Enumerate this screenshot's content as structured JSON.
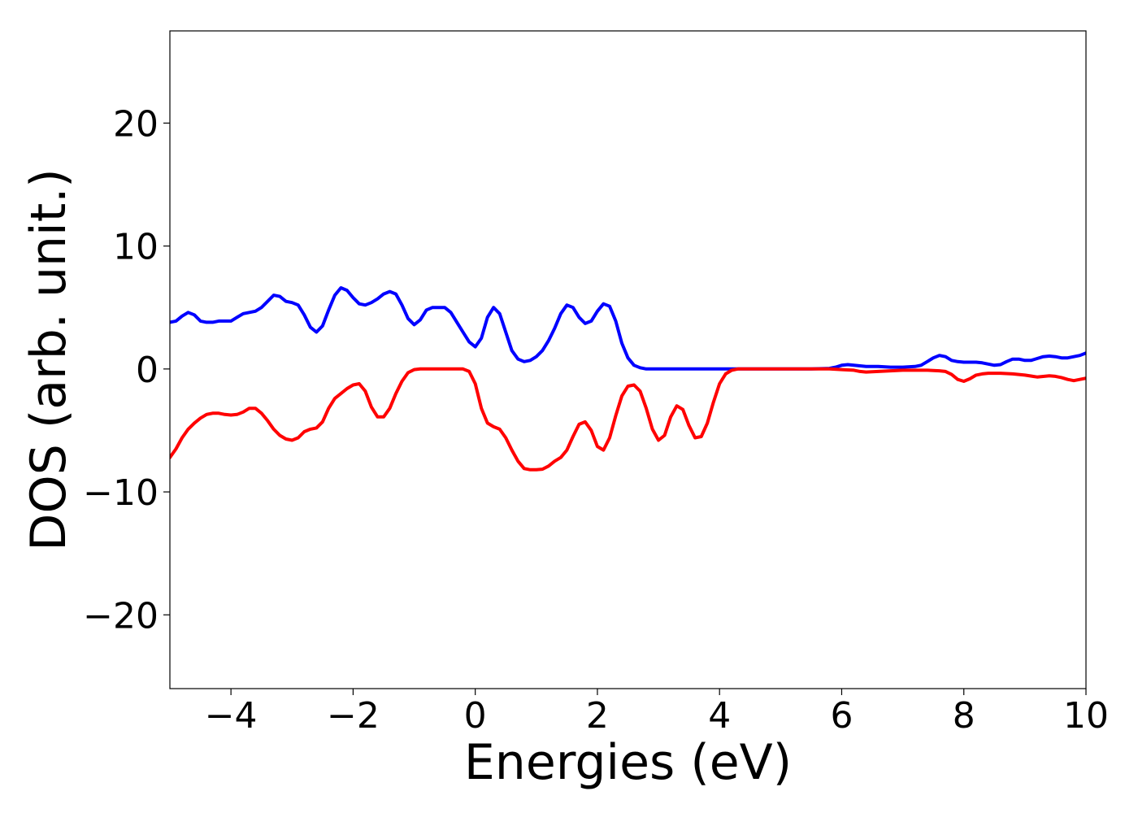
{
  "chart_data": {
    "type": "line",
    "title": "",
    "xlabel": "Energies (eV)",
    "ylabel": "DOS (arb. unit.)",
    "xlim": [
      -5,
      10
    ],
    "ylim": [
      -26,
      27.5
    ],
    "xticks": [
      -4,
      -2,
      0,
      2,
      4,
      6,
      8,
      10
    ],
    "yticks": [
      -20,
      -10,
      0,
      10,
      20
    ],
    "grid": false,
    "legend": "none",
    "series": [
      {
        "color": "#0000ff",
        "points": [
          [
            -5.0,
            3.8
          ],
          [
            -4.9,
            3.9
          ],
          [
            -4.8,
            4.3
          ],
          [
            -4.7,
            4.6
          ],
          [
            -4.6,
            4.4
          ],
          [
            -4.5,
            3.9
          ],
          [
            -4.4,
            3.8
          ],
          [
            -4.3,
            3.8
          ],
          [
            -4.2,
            3.9
          ],
          [
            -4.1,
            3.9
          ],
          [
            -4.0,
            3.9
          ],
          [
            -3.9,
            4.2
          ],
          [
            -3.8,
            4.5
          ],
          [
            -3.7,
            4.6
          ],
          [
            -3.6,
            4.7
          ],
          [
            -3.5,
            5.0
          ],
          [
            -3.4,
            5.5
          ],
          [
            -3.3,
            6.0
          ],
          [
            -3.2,
            5.9
          ],
          [
            -3.1,
            5.5
          ],
          [
            -3.0,
            5.4
          ],
          [
            -2.9,
            5.2
          ],
          [
            -2.8,
            4.4
          ],
          [
            -2.7,
            3.4
          ],
          [
            -2.6,
            3.0
          ],
          [
            -2.5,
            3.5
          ],
          [
            -2.4,
            4.8
          ],
          [
            -2.3,
            6.0
          ],
          [
            -2.2,
            6.6
          ],
          [
            -2.1,
            6.4
          ],
          [
            -2.0,
            5.8
          ],
          [
            -1.9,
            5.3
          ],
          [
            -1.8,
            5.2
          ],
          [
            -1.7,
            5.4
          ],
          [
            -1.6,
            5.7
          ],
          [
            -1.5,
            6.1
          ],
          [
            -1.4,
            6.3
          ],
          [
            -1.3,
            6.1
          ],
          [
            -1.2,
            5.2
          ],
          [
            -1.1,
            4.1
          ],
          [
            -1.0,
            3.6
          ],
          [
            -0.9,
            4.0
          ],
          [
            -0.8,
            4.8
          ],
          [
            -0.7,
            5.0
          ],
          [
            -0.6,
            5.0
          ],
          [
            -0.5,
            5.0
          ],
          [
            -0.4,
            4.6
          ],
          [
            -0.3,
            3.8
          ],
          [
            -0.2,
            3.0
          ],
          [
            -0.1,
            2.2
          ],
          [
            0.0,
            1.8
          ],
          [
            0.1,
            2.5
          ],
          [
            0.2,
            4.2
          ],
          [
            0.3,
            5.0
          ],
          [
            0.4,
            4.5
          ],
          [
            0.5,
            3.0
          ],
          [
            0.6,
            1.5
          ],
          [
            0.7,
            0.8
          ],
          [
            0.8,
            0.6
          ],
          [
            0.9,
            0.7
          ],
          [
            1.0,
            1.0
          ],
          [
            1.1,
            1.5
          ],
          [
            1.2,
            2.3
          ],
          [
            1.3,
            3.3
          ],
          [
            1.4,
            4.5
          ],
          [
            1.5,
            5.2
          ],
          [
            1.6,
            5.0
          ],
          [
            1.7,
            4.2
          ],
          [
            1.8,
            3.7
          ],
          [
            1.9,
            3.9
          ],
          [
            2.0,
            4.7
          ],
          [
            2.1,
            5.3
          ],
          [
            2.2,
            5.1
          ],
          [
            2.3,
            3.9
          ],
          [
            2.4,
            2.1
          ],
          [
            2.5,
            0.9
          ],
          [
            2.6,
            0.3
          ],
          [
            2.7,
            0.1
          ],
          [
            2.8,
            0.0
          ],
          [
            3.0,
            0.0
          ],
          [
            3.5,
            0.0
          ],
          [
            4.0,
            0.0
          ],
          [
            4.5,
            0.0
          ],
          [
            5.0,
            0.0
          ],
          [
            5.5,
            0.0
          ],
          [
            5.8,
            0.05
          ],
          [
            5.9,
            0.15
          ],
          [
            6.0,
            0.3
          ],
          [
            6.1,
            0.35
          ],
          [
            6.2,
            0.3
          ],
          [
            6.4,
            0.2
          ],
          [
            6.6,
            0.2
          ],
          [
            6.8,
            0.15
          ],
          [
            7.0,
            0.15
          ],
          [
            7.2,
            0.2
          ],
          [
            7.3,
            0.3
          ],
          [
            7.4,
            0.6
          ],
          [
            7.5,
            0.9
          ],
          [
            7.6,
            1.1
          ],
          [
            7.7,
            1.0
          ],
          [
            7.8,
            0.7
          ],
          [
            7.9,
            0.6
          ],
          [
            8.0,
            0.55
          ],
          [
            8.2,
            0.55
          ],
          [
            8.3,
            0.5
          ],
          [
            8.4,
            0.4
          ],
          [
            8.5,
            0.3
          ],
          [
            8.6,
            0.35
          ],
          [
            8.7,
            0.6
          ],
          [
            8.8,
            0.8
          ],
          [
            8.9,
            0.8
          ],
          [
            9.0,
            0.7
          ],
          [
            9.1,
            0.7
          ],
          [
            9.2,
            0.85
          ],
          [
            9.3,
            1.0
          ],
          [
            9.4,
            1.05
          ],
          [
            9.5,
            1.0
          ],
          [
            9.6,
            0.9
          ],
          [
            9.7,
            0.9
          ],
          [
            9.8,
            1.0
          ],
          [
            9.9,
            1.1
          ],
          [
            10.0,
            1.3
          ]
        ]
      },
      {
        "color": "#ff0000",
        "points": [
          [
            -5.0,
            -7.2
          ],
          [
            -4.9,
            -6.5
          ],
          [
            -4.8,
            -5.6
          ],
          [
            -4.7,
            -4.9
          ],
          [
            -4.6,
            -4.4
          ],
          [
            -4.5,
            -4.0
          ],
          [
            -4.4,
            -3.7
          ],
          [
            -4.3,
            -3.6
          ],
          [
            -4.2,
            -3.6
          ],
          [
            -4.1,
            -3.7
          ],
          [
            -4.0,
            -3.75
          ],
          [
            -3.9,
            -3.7
          ],
          [
            -3.8,
            -3.5
          ],
          [
            -3.7,
            -3.2
          ],
          [
            -3.6,
            -3.2
          ],
          [
            -3.5,
            -3.6
          ],
          [
            -3.4,
            -4.2
          ],
          [
            -3.3,
            -4.9
          ],
          [
            -3.2,
            -5.4
          ],
          [
            -3.1,
            -5.7
          ],
          [
            -3.0,
            -5.8
          ],
          [
            -2.9,
            -5.6
          ],
          [
            -2.8,
            -5.1
          ],
          [
            -2.7,
            -4.9
          ],
          [
            -2.6,
            -4.8
          ],
          [
            -2.5,
            -4.3
          ],
          [
            -2.4,
            -3.2
          ],
          [
            -2.3,
            -2.4
          ],
          [
            -2.2,
            -2.0
          ],
          [
            -2.1,
            -1.6
          ],
          [
            -2.0,
            -1.3
          ],
          [
            -1.9,
            -1.2
          ],
          [
            -1.8,
            -1.8
          ],
          [
            -1.7,
            -3.1
          ],
          [
            -1.6,
            -3.9
          ],
          [
            -1.5,
            -3.9
          ],
          [
            -1.4,
            -3.2
          ],
          [
            -1.3,
            -2.0
          ],
          [
            -1.2,
            -1.0
          ],
          [
            -1.1,
            -0.3
          ],
          [
            -1.0,
            -0.05
          ],
          [
            -0.9,
            0.0
          ],
          [
            -0.5,
            0.0
          ],
          [
            -0.2,
            0.0
          ],
          [
            -0.1,
            -0.2
          ],
          [
            0.0,
            -1.2
          ],
          [
            0.1,
            -3.2
          ],
          [
            0.2,
            -4.4
          ],
          [
            0.3,
            -4.7
          ],
          [
            0.4,
            -4.9
          ],
          [
            0.5,
            -5.6
          ],
          [
            0.6,
            -6.6
          ],
          [
            0.7,
            -7.5
          ],
          [
            0.8,
            -8.1
          ],
          [
            0.9,
            -8.2
          ],
          [
            1.0,
            -8.2
          ],
          [
            1.1,
            -8.15
          ],
          [
            1.2,
            -7.9
          ],
          [
            1.3,
            -7.5
          ],
          [
            1.4,
            -7.2
          ],
          [
            1.5,
            -6.6
          ],
          [
            1.6,
            -5.5
          ],
          [
            1.7,
            -4.5
          ],
          [
            1.8,
            -4.3
          ],
          [
            1.9,
            -5.0
          ],
          [
            2.0,
            -6.3
          ],
          [
            2.1,
            -6.6
          ],
          [
            2.2,
            -5.6
          ],
          [
            2.3,
            -3.8
          ],
          [
            2.4,
            -2.2
          ],
          [
            2.5,
            -1.4
          ],
          [
            2.6,
            -1.3
          ],
          [
            2.7,
            -1.8
          ],
          [
            2.8,
            -3.2
          ],
          [
            2.9,
            -4.9
          ],
          [
            3.0,
            -5.8
          ],
          [
            3.1,
            -5.4
          ],
          [
            3.2,
            -3.9
          ],
          [
            3.3,
            -3.0
          ],
          [
            3.4,
            -3.3
          ],
          [
            3.5,
            -4.6
          ],
          [
            3.6,
            -5.6
          ],
          [
            3.7,
            -5.5
          ],
          [
            3.8,
            -4.4
          ],
          [
            3.9,
            -2.7
          ],
          [
            4.0,
            -1.2
          ],
          [
            4.1,
            -0.4
          ],
          [
            4.2,
            -0.1
          ],
          [
            4.3,
            0.0
          ],
          [
            5.0,
            0.0
          ],
          [
            5.8,
            0.0
          ],
          [
            6.0,
            -0.05
          ],
          [
            6.2,
            -0.1
          ],
          [
            6.3,
            -0.2
          ],
          [
            6.4,
            -0.25
          ],
          [
            6.6,
            -0.2
          ],
          [
            6.8,
            -0.15
          ],
          [
            7.0,
            -0.1
          ],
          [
            7.2,
            -0.1
          ],
          [
            7.4,
            -0.1
          ],
          [
            7.6,
            -0.15
          ],
          [
            7.7,
            -0.2
          ],
          [
            7.8,
            -0.45
          ],
          [
            7.9,
            -0.85
          ],
          [
            8.0,
            -1.0
          ],
          [
            8.1,
            -0.8
          ],
          [
            8.2,
            -0.5
          ],
          [
            8.3,
            -0.4
          ],
          [
            8.4,
            -0.35
          ],
          [
            8.6,
            -0.35
          ],
          [
            8.8,
            -0.4
          ],
          [
            9.0,
            -0.5
          ],
          [
            9.2,
            -0.65
          ],
          [
            9.4,
            -0.55
          ],
          [
            9.5,
            -0.6
          ],
          [
            9.6,
            -0.7
          ],
          [
            9.7,
            -0.85
          ],
          [
            9.8,
            -0.95
          ],
          [
            9.9,
            -0.85
          ],
          [
            10.0,
            -0.75
          ]
        ]
      }
    ]
  }
}
